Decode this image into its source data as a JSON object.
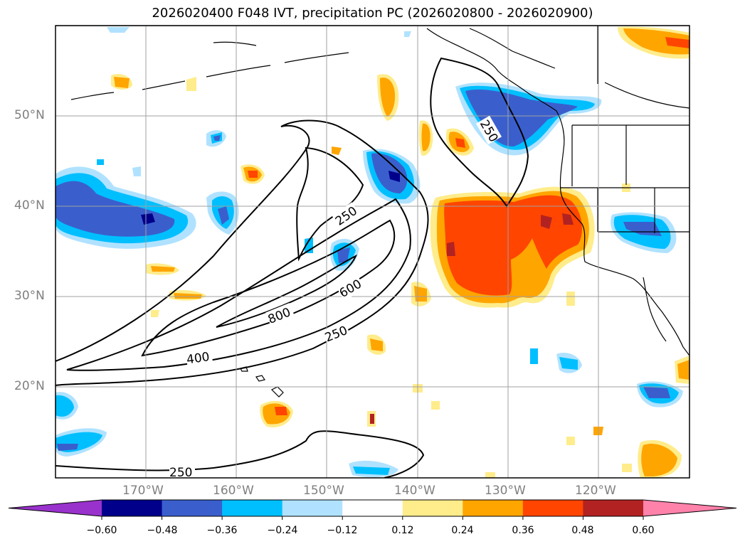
{
  "title": "2026020400 F048 IVT, precipitation PC (2026020800 - 2026020900)",
  "map": {
    "lat_labels": [
      "50°N",
      "40°N",
      "30°N",
      "20°N"
    ],
    "lon_labels": [
      "170°W",
      "160°W",
      "150°W",
      "140°W",
      "130°W",
      "120°W"
    ],
    "contour_labels": [
      "250",
      "250",
      "600",
      "800",
      "250",
      "400",
      "250"
    ]
  },
  "colorbar": {
    "ticks": [
      "−0.60",
      "−0.48",
      "−0.36",
      "−0.24",
      "−0.12",
      "0.12",
      "0.24",
      "0.36",
      "0.48",
      "0.60"
    ],
    "colors": [
      "#9932cc",
      "#00008b",
      "#3a5fcd",
      "#00bfff",
      "#b0e2ff",
      "#ffffff",
      "#ffec8b",
      "#ffa500",
      "#ff4500",
      "#b22222",
      "#ff82ab"
    ]
  }
}
